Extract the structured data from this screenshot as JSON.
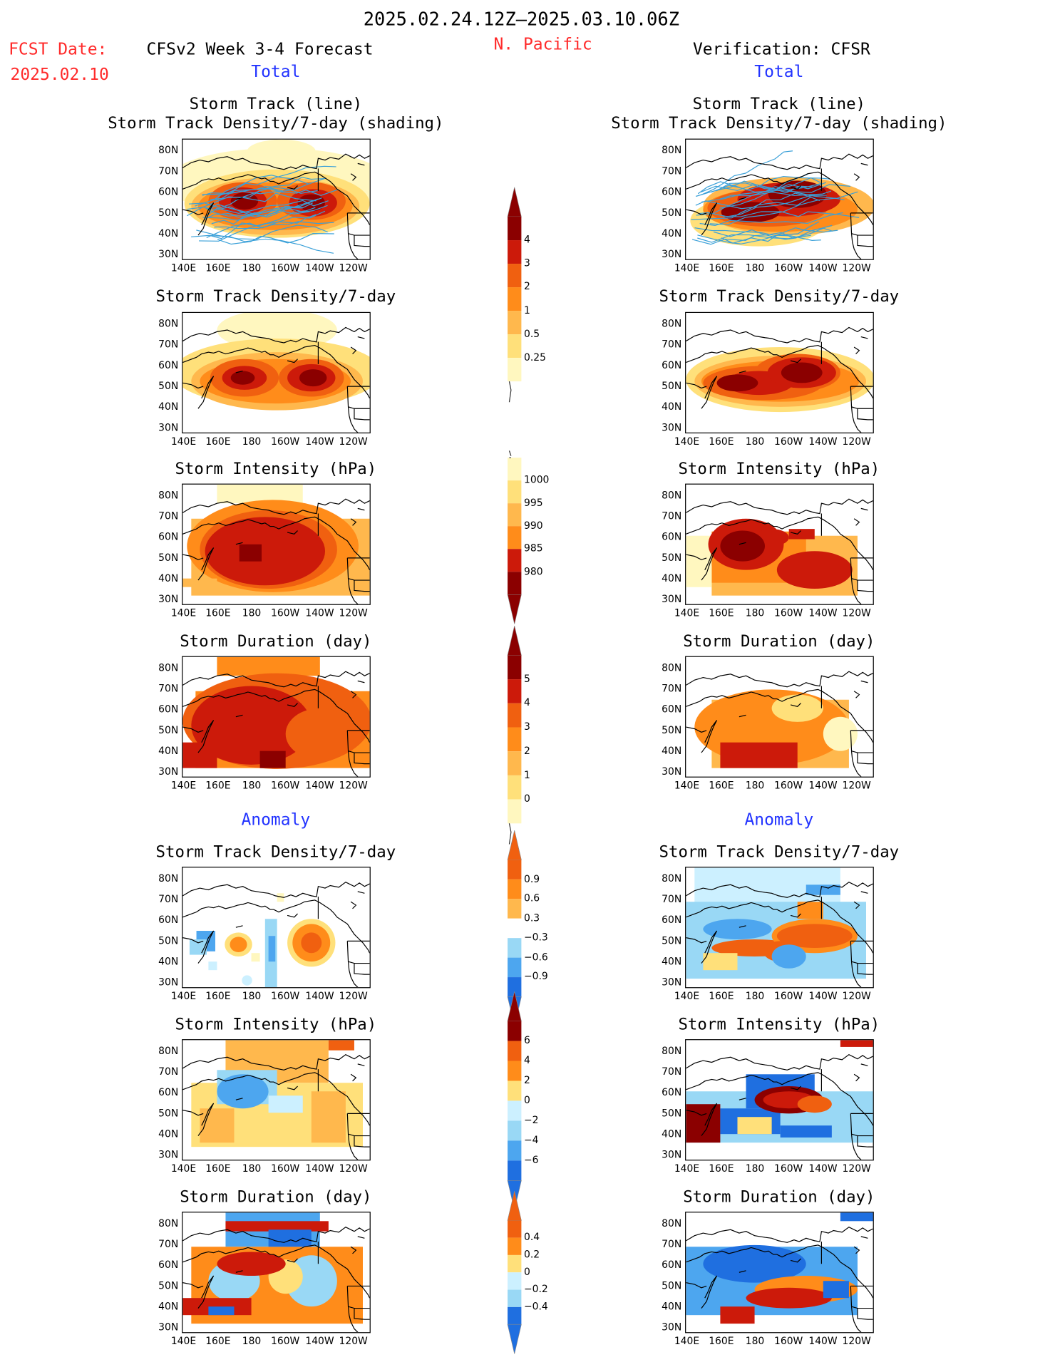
{
  "header": {
    "date_range": "2025.02.24.12Z–2025.03.10.06Z",
    "fcst_label": "FCST Date:",
    "fcst_date": "2025.02.10",
    "forecast_title": "CFSv2 Week 3-4 Forecast",
    "region": "N. Pacific",
    "verification": "Verification: CFSR"
  },
  "sections": {
    "total": "Total",
    "anomaly": "Anomaly"
  },
  "panel_titles": {
    "track_line": "Storm Track (line)",
    "track_shading": "Storm Track Density/7-day (shading)",
    "density": "Storm Track Density/7-day",
    "intensity": "Storm Intensity (hPa)",
    "duration": "Storm Duration (day)"
  },
  "axes": {
    "lat": [
      "80N",
      "70N",
      "60N",
      "50N",
      "40N",
      "30N"
    ],
    "lon": [
      "140E",
      "160E",
      "180",
      "160W",
      "140W",
      "120W"
    ]
  },
  "colorbars": {
    "density_total": [
      "4",
      "3",
      "2",
      "1",
      "0.5",
      "0.25"
    ],
    "intensity_total": [
      "1000",
      "995",
      "990",
      "985",
      "980"
    ],
    "duration_total": [
      "5",
      "4",
      "3",
      "2",
      "1",
      "0"
    ],
    "density_anom": [
      "0.9",
      "0.6",
      "0.3",
      "−0.3",
      "−0.6",
      "−0.9"
    ],
    "intensity_anom": [
      "6",
      "4",
      "2",
      "0",
      "−2",
      "−4",
      "−6"
    ],
    "duration_anom": [
      "0.4",
      "0.2",
      "0",
      "−0.2",
      "−0.4"
    ]
  },
  "colors": {
    "warm": [
      "#fff7bf",
      "#ffe07a",
      "#ffb84d",
      "#ff8c1a",
      "#f06010",
      "#cc1a0a",
      "#8b0000"
    ],
    "cool": [
      "#ccf0ff",
      "#99d8f5",
      "#4da6ef",
      "#1f6fe0"
    ],
    "text_red": "#ff2a2a",
    "text_blue": "#2233ff",
    "track_line": "#3aa0d8"
  }
}
